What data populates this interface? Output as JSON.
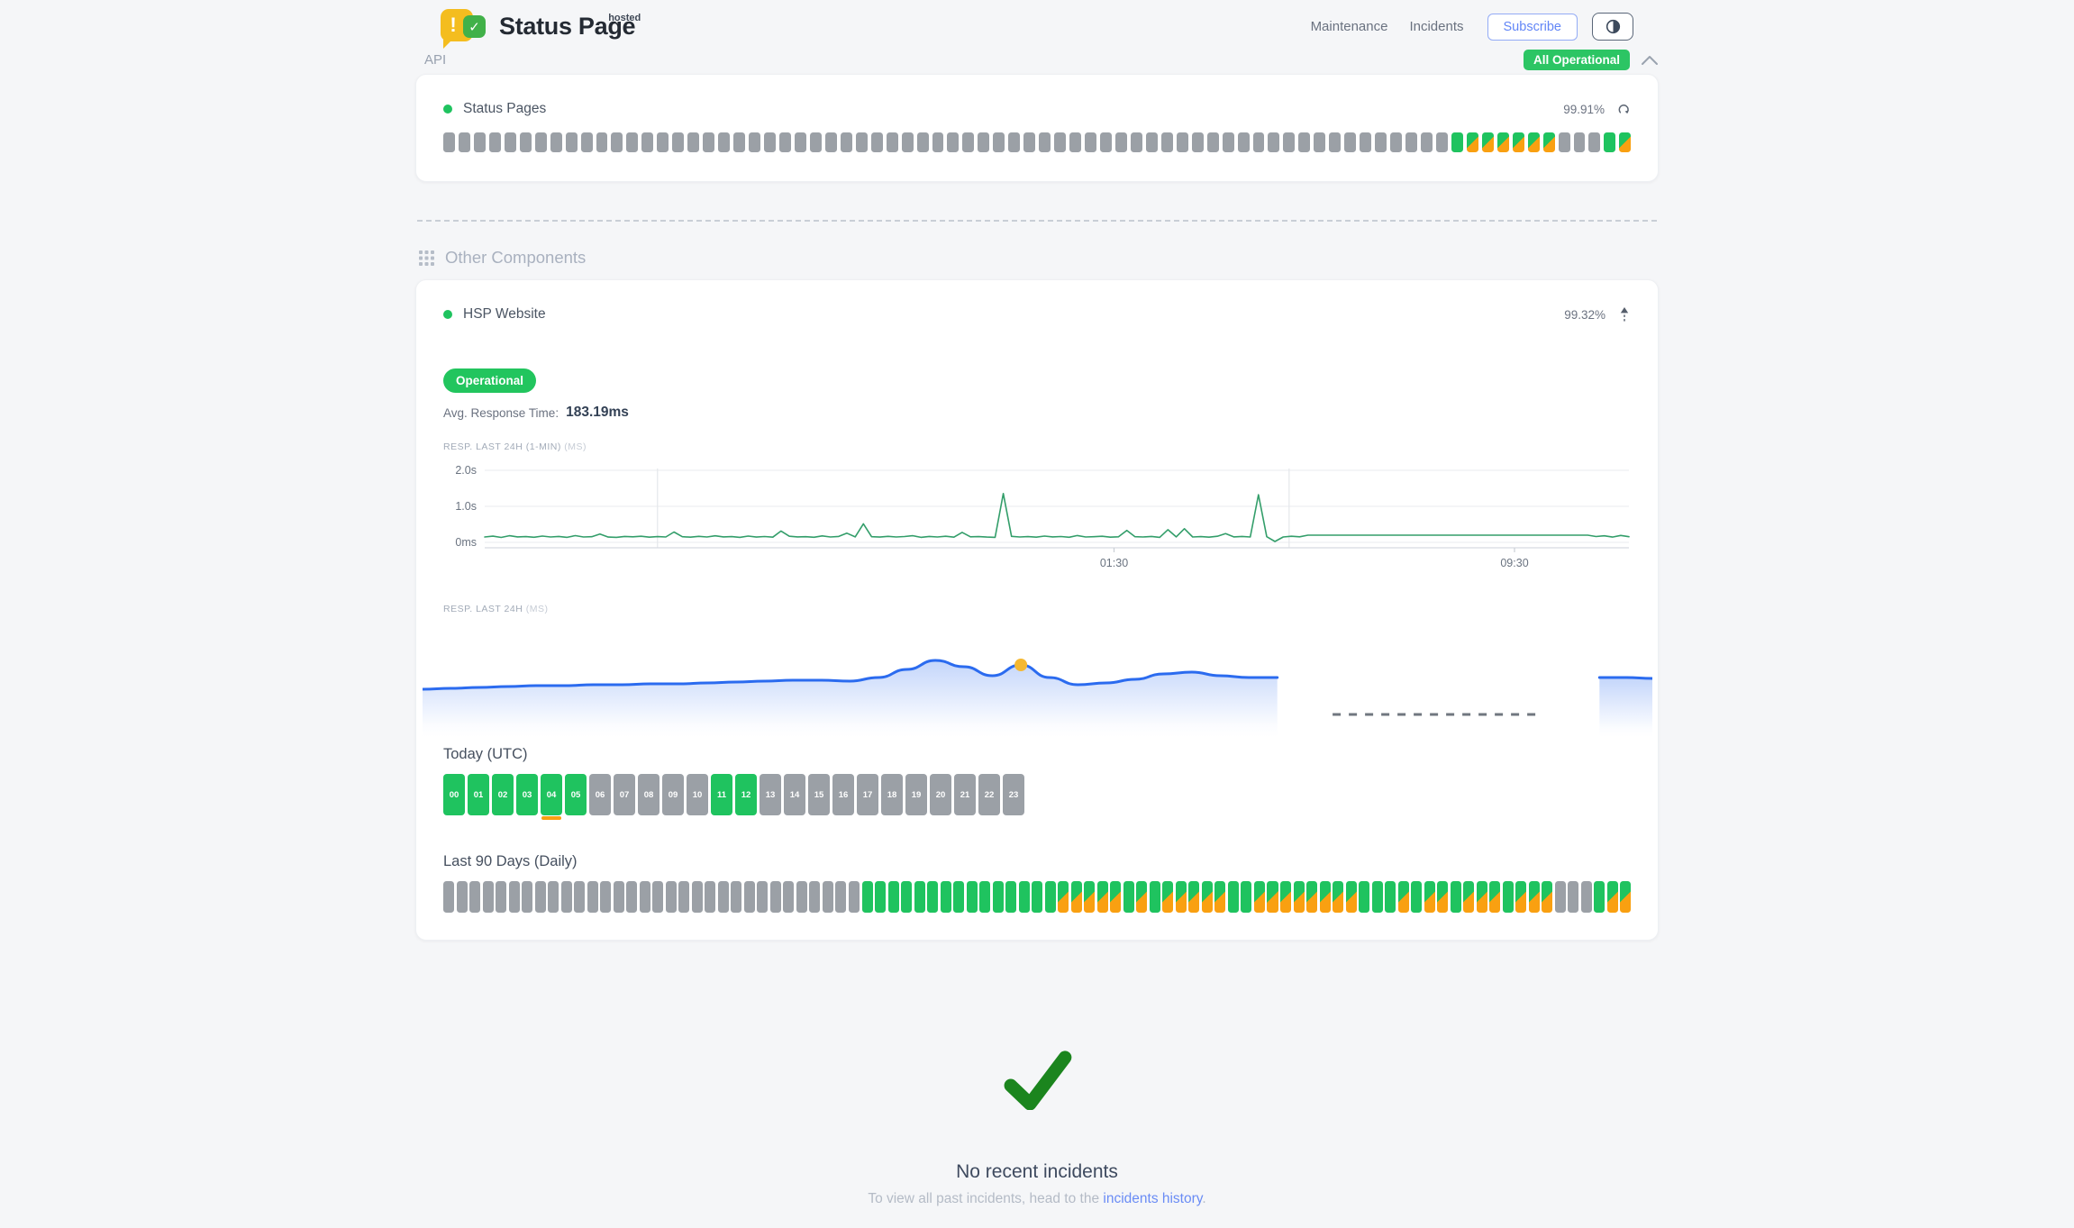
{
  "header": {
    "logo": {
      "name": "Status Page",
      "superscript": "hosted",
      "bubble_mark": "!",
      "check_mark": "✓"
    },
    "nav": {
      "maintenance": "Maintenance",
      "incidents": "Incidents"
    },
    "subscribe_label": "Subscribe",
    "overall_status": "All Operational"
  },
  "api_section": {
    "title": "API",
    "component": {
      "name": "Status Pages",
      "uptime_pct": "99.91%",
      "bars": "nnnnnnnnnnnnnnnnnnnnnnnnnnnnnnnnnnnnnnnnnnnnnnnnnnnnnnnnnnnnnnnnnnuddddddnnnud"
    }
  },
  "other_section": {
    "title": "Other Components",
    "component": {
      "name": "HSP Website",
      "uptime_pct": "99.32%",
      "status_label": "Operational",
      "avg_response_label": "Avg. Response Time:",
      "avg_response_value": "183.19ms",
      "chart1_label": "RESP. LAST 24H (1-MIN)",
      "chart1_unit": "(MS)",
      "chart2_label": "RESP. LAST 24H",
      "chart2_unit": "(MS)"
    }
  },
  "today": {
    "title": "Today (UTC)",
    "hours": [
      {
        "label": "00",
        "state": "u"
      },
      {
        "label": "01",
        "state": "u"
      },
      {
        "label": "02",
        "state": "u"
      },
      {
        "label": "03",
        "state": "u"
      },
      {
        "label": "04",
        "state": "u",
        "marker": true
      },
      {
        "label": "05",
        "state": "u"
      },
      {
        "label": "06",
        "state": "n"
      },
      {
        "label": "07",
        "state": "n"
      },
      {
        "label": "08",
        "state": "n"
      },
      {
        "label": "09",
        "state": "n"
      },
      {
        "label": "10",
        "state": "n"
      },
      {
        "label": "11",
        "state": "u"
      },
      {
        "label": "12",
        "state": "u"
      },
      {
        "label": "13",
        "state": "n"
      },
      {
        "label": "14",
        "state": "n"
      },
      {
        "label": "15",
        "state": "n"
      },
      {
        "label": "16",
        "state": "n"
      },
      {
        "label": "17",
        "state": "n"
      },
      {
        "label": "18",
        "state": "n"
      },
      {
        "label": "19",
        "state": "n"
      },
      {
        "label": "20",
        "state": "n"
      },
      {
        "label": "21",
        "state": "n"
      },
      {
        "label": "22",
        "state": "n"
      },
      {
        "label": "23",
        "state": "n"
      }
    ]
  },
  "last90": {
    "title": "Last 90 Days (Daily)",
    "days": "nnnnnnnnnnnnnnnnnnnnnnnnnnnnnnnnuuuuuuuuuuuuuuudddddududdddduudddddddduuududdudddudddnnnudd"
  },
  "incidents": {
    "title": "No recent incidents",
    "text_prefix": "To view all past incidents, head to the ",
    "link_text": "incidents history",
    "text_suffix": "."
  },
  "colors": {
    "green": "#1fc35f",
    "badge_green": "#2cc564",
    "orange": "#f9a011",
    "gray_bar": "#9ba0a6",
    "blue_line": "#2b6bef",
    "green_line": "#339e6a",
    "marker_yellow": "#f5b831",
    "link_blue": "#6a8cf5"
  },
  "chart_data": [
    {
      "type": "line",
      "title": "RESP. LAST 24H (1-MIN) (MS)",
      "unit": "ms",
      "ylim_ms": [
        0,
        2000
      ],
      "y_tick_labels": [
        "2.0s",
        "1.0s",
        "0ms"
      ],
      "x_tick_labels": [
        "01:30",
        "09:30"
      ],
      "x_tick_pos": [
        0.55,
        0.9
      ],
      "grid_x_pos": [
        0.151,
        0.703
      ],
      "values_ms": [
        150,
        172,
        138,
        185,
        152,
        160,
        143,
        176,
        149,
        164,
        139,
        188,
        151,
        158,
        232,
        148,
        141,
        166,
        154,
        171,
        144,
        161,
        149,
        287,
        158,
        146,
        168,
        151,
        183,
        153,
        159,
        141,
        174,
        148,
        163,
        146,
        315,
        169,
        152,
        158,
        142,
        179,
        150,
        164,
        255,
        152,
        515,
        158,
        147,
        168,
        151,
        162,
        186,
        141,
        166,
        149,
        171,
        146,
        278,
        154,
        161,
        148,
        139,
        1355,
        168,
        151,
        159,
        144,
        174,
        153,
        163,
        142,
        189,
        149,
        158,
        171,
        146,
        154,
        332,
        158,
        151,
        164,
        141,
        352,
        153,
        381,
        149,
        161,
        146,
        169,
        243,
        152,
        166,
        149,
        1322,
        158,
        24,
        149,
        171,
        154,
        200,
        200,
        200,
        200,
        200,
        200,
        200,
        200,
        200,
        200,
        200,
        200,
        200,
        200,
        200,
        200,
        200,
        200,
        200,
        200,
        200,
        200,
        200,
        200,
        200,
        200,
        200,
        200,
        200,
        200,
        200,
        200,
        200,
        200,
        200,
        162,
        183,
        147,
        192,
        157
      ]
    },
    {
      "type": "area",
      "title": "RESP. LAST 24H (MS)",
      "unit": "ms",
      "seg1_x_range": [
        0,
        0.695
      ],
      "seg1_values_ms": [
        183,
        184,
        185,
        186,
        187,
        187,
        188,
        188,
        189,
        189,
        190,
        191,
        192,
        193,
        193,
        192,
        196,
        205,
        215,
        208,
        198,
        210,
        196,
        188,
        190,
        194,
        200,
        202,
        198,
        196,
        196
      ],
      "seg2_x": [
        0.957,
        0.979,
        1.0
      ],
      "seg2_values_ms": [
        196,
        196,
        195
      ],
      "gap_dash_x": [
        0.74,
        0.91
      ],
      "marker": {
        "seg1_index": 21,
        "value_ms": 210
      }
    }
  ]
}
